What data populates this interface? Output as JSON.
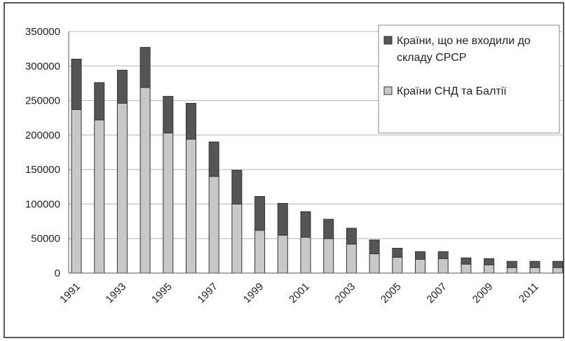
{
  "chart_data": {
    "type": "bar",
    "stacked": true,
    "categories": [
      "1991",
      "1992",
      "1993",
      "1994",
      "1995",
      "1996",
      "1997",
      "1998",
      "1999",
      "2000",
      "2001",
      "2002",
      "2003",
      "2004",
      "2005",
      "2006",
      "2007",
      "2008",
      "2009",
      "2010",
      "2011",
      "2012"
    ],
    "x_tick_labels": [
      "1991",
      "1993",
      "1995",
      "1997",
      "1999",
      "2001",
      "2003",
      "2005",
      "2007",
      "2009",
      "2011"
    ],
    "series": [
      {
        "name": "Країни СНД та Балтії",
        "color": "#c8c8c8",
        "values": [
          237000,
          222000,
          246000,
          269000,
          203000,
          194000,
          140000,
          100000,
          62000,
          55000,
          52000,
          50000,
          42000,
          28000,
          23000,
          20000,
          21000,
          13000,
          12000,
          8000,
          8000,
          8000
        ]
      },
      {
        "name": "Країни, що не входили до складу СРСР",
        "color": "#555555",
        "values": [
          73000,
          54000,
          48000,
          58000,
          53000,
          52000,
          50000,
          49000,
          49000,
          46000,
          37000,
          28000,
          23000,
          20000,
          13000,
          11000,
          10000,
          9000,
          9000,
          9000,
          9000,
          9000
        ]
      }
    ],
    "ylim": [
      0,
      350000
    ],
    "yticks": [
      0,
      50000,
      100000,
      150000,
      200000,
      250000,
      300000,
      350000
    ],
    "grid": true,
    "legend_position": "top-right",
    "legend_entries": [
      {
        "lines": [
          "Країни, що не входили до",
          "складу СРСР"
        ],
        "series": 1
      },
      {
        "lines": [
          "Країни СНД та Балтії"
        ],
        "series": 0
      }
    ],
    "title": "",
    "xlabel": "",
    "ylabel": ""
  }
}
